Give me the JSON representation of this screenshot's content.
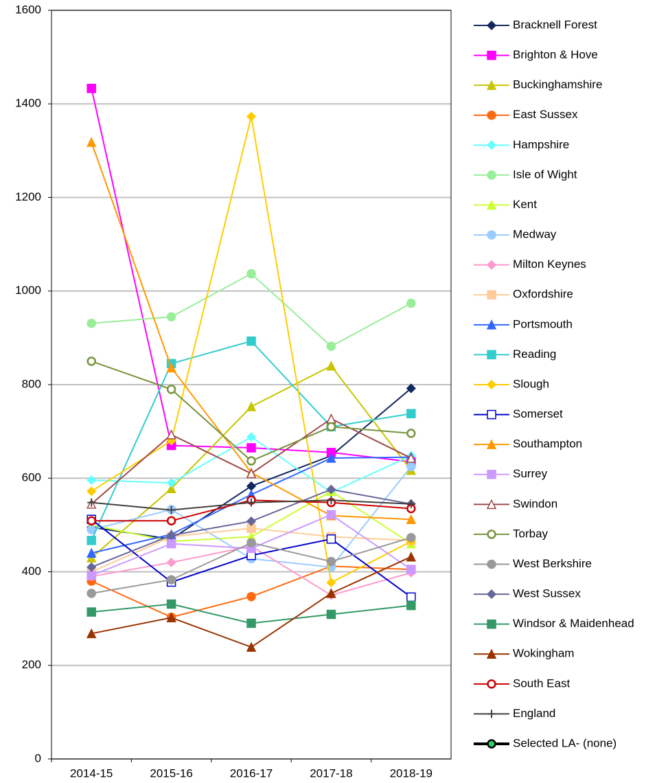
{
  "chart_data": {
    "type": "line",
    "categories": [
      "2014-15",
      "2015-16",
      "2016-17",
      "2017-18",
      "2018-19"
    ],
    "ylim": [
      0,
      1600
    ],
    "yticks": [
      0,
      200,
      400,
      600,
      800,
      1000,
      1200,
      1400,
      1600
    ],
    "grid": true,
    "series": [
      {
        "name": "Bracknell Forest",
        "color": "#14285f",
        "marker": "diamond",
        "marker_fill": "#14285f",
        "values": [
          495,
          470,
          583,
          648,
          792
        ]
      },
      {
        "name": "Brighton & Hove",
        "color": "#ff00ff",
        "marker": "square",
        "marker_fill": "#ff00ff",
        "values": [
          1433,
          670,
          665,
          655,
          635
        ]
      },
      {
        "name": "Buckinghamshire",
        "color": "#c8c400",
        "marker": "triangle",
        "marker_fill": "#c8c400",
        "values": [
          430,
          578,
          753,
          840,
          617
        ]
      },
      {
        "name": "East Sussex",
        "color": "#ff6a10",
        "marker": "circle",
        "marker_fill": "#ff6a10",
        "values": [
          380,
          303,
          347,
          412,
          405
        ]
      },
      {
        "name": "Hampshire",
        "color": "#66ffff",
        "marker": "diamond",
        "marker_fill": "#66ffff",
        "values": [
          596,
          590,
          688,
          570,
          648
        ]
      },
      {
        "name": "Isle of Wight",
        "color": "#99ee99",
        "marker": "circle",
        "marker_fill": "#99ee99",
        "values": [
          931,
          945,
          1037,
          882,
          974
        ]
      },
      {
        "name": "Kent",
        "color": "#ccff33",
        "marker": "triangle",
        "marker_fill": "#ccff33",
        "values": [
          500,
          465,
          475,
          572,
          460
        ]
      },
      {
        "name": "Medway",
        "color": "#99ccff",
        "marker": "circle",
        "marker_fill": "#99ccff",
        "values": [
          490,
          533,
          428,
          410,
          625
        ]
      },
      {
        "name": "Milton Keynes",
        "color": "#ff99cc",
        "marker": "diamond",
        "marker_fill": "#ff99cc",
        "values": [
          390,
          420,
          455,
          350,
          398
        ]
      },
      {
        "name": "Oxfordshire",
        "color": "#ffcc99",
        "marker": "square",
        "marker_fill": "#ffcc99",
        "values": [
          400,
          475,
          493,
          475,
          467
        ]
      },
      {
        "name": "Portsmouth",
        "color": "#3366ff",
        "marker": "triangle",
        "marker_fill": "#3366ff",
        "values": [
          440,
          480,
          565,
          643,
          645
        ]
      },
      {
        "name": "Reading",
        "color": "#33cccc",
        "marker": "square",
        "marker_fill": "#33cccc",
        "values": [
          467,
          845,
          893,
          710,
          738
        ]
      },
      {
        "name": "Slough",
        "color": "#ffcc00",
        "marker": "diamond",
        "marker_fill": "#ffcc00",
        "values": [
          572,
          680,
          1373,
          377,
          465
        ]
      },
      {
        "name": "Somerset",
        "color": "#0000cc",
        "marker": "square",
        "marker_fill": "#ffffff",
        "values": [
          512,
          378,
          435,
          470,
          346
        ]
      },
      {
        "name": "Southampton",
        "color": "#ff9900",
        "marker": "triangle",
        "marker_fill": "#ff9900",
        "values": [
          1318,
          836,
          612,
          520,
          512
        ]
      },
      {
        "name": "Surrey",
        "color": "#cc99ff",
        "marker": "square",
        "marker_fill": "#cc99ff",
        "values": [
          392,
          460,
          450,
          522,
          405
        ]
      },
      {
        "name": "Swindon",
        "color": "#a04848",
        "marker": "triangle",
        "marker_fill": "#ffffff",
        "values": [
          545,
          693,
          610,
          727,
          643
        ]
      },
      {
        "name": "Torbay",
        "color": "#77933c",
        "marker": "circle",
        "marker_fill": "#ffffff",
        "values": [
          850,
          790,
          637,
          710,
          696
        ]
      },
      {
        "name": "West Berkshire",
        "color": "#999999",
        "marker": "circle",
        "marker_fill": "#999999",
        "values": [
          354,
          383,
          462,
          422,
          473
        ]
      },
      {
        "name": "West Sussex",
        "color": "#666699",
        "marker": "diamond",
        "marker_fill": "#666699",
        "values": [
          410,
          478,
          508,
          576,
          545
        ]
      },
      {
        "name": "Windsor & Maidenhead",
        "color": "#339966",
        "marker": "square",
        "marker_fill": "#339966",
        "values": [
          314,
          331,
          290,
          309,
          328
        ]
      },
      {
        "name": "Wokingham",
        "color": "#993300",
        "marker": "triangle",
        "marker_fill": "#993300",
        "values": [
          268,
          302,
          239,
          354,
          432
        ]
      },
      {
        "name": "South East",
        "color": "#cc0000",
        "marker": "circle",
        "marker_fill": "#ffffff",
        "values": [
          509,
          509,
          553,
          548,
          535
        ]
      },
      {
        "name": "England",
        "color": "#404040",
        "marker": "plus",
        "marker_fill": "#404040",
        "values": [
          548,
          532,
          548,
          553,
          545
        ]
      },
      {
        "name": "Selected LA- (none)",
        "color": "#000000",
        "marker": "circle",
        "marker_fill": "#33cc66",
        "values": [
          null,
          null,
          null,
          null,
          null
        ]
      }
    ]
  }
}
